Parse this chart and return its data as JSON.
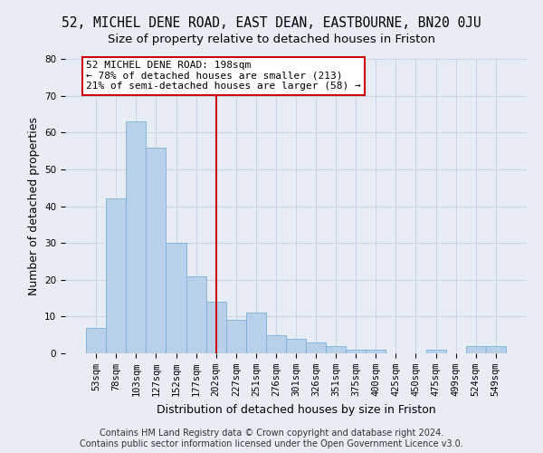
{
  "title_line1": "52, MICHEL DENE ROAD, EAST DEAN, EASTBOURNE, BN20 0JU",
  "title_line2": "Size of property relative to detached houses in Friston",
  "xlabel": "Distribution of detached houses by size in Friston",
  "ylabel": "Number of detached properties",
  "bar_labels": [
    "53sqm",
    "78sqm",
    "103sqm",
    "127sqm",
    "152sqm",
    "177sqm",
    "202sqm",
    "227sqm",
    "251sqm",
    "276sqm",
    "301sqm",
    "326sqm",
    "351sqm",
    "375sqm",
    "400sqm",
    "425sqm",
    "450sqm",
    "475sqm",
    "499sqm",
    "524sqm",
    "549sqm"
  ],
  "bar_values": [
    7,
    42,
    63,
    56,
    30,
    21,
    14,
    9,
    11,
    5,
    4,
    3,
    2,
    1,
    1,
    0,
    0,
    1,
    0,
    2,
    2
  ],
  "bar_color": "#b8d0ea",
  "bar_edge_color": "#7aafd4",
  "vline_x_index": 6,
  "vline_color": "#cc0000",
  "annotation_line1": "52 MICHEL DENE ROAD: 198sqm",
  "annotation_line2": "← 78% of detached houses are smaller (213)",
  "annotation_line3": "21% of semi-detached houses are larger (58) →",
  "annotation_box_color": "#ffffff",
  "annotation_box_edge": "#cc0000",
  "ylim": [
    0,
    80
  ],
  "yticks": [
    0,
    10,
    20,
    30,
    40,
    50,
    60,
    70,
    80
  ],
  "grid_color": "#c8d4e8",
  "background_color": "#e8edf5",
  "footer": "Contains HM Land Registry data © Crown copyright and database right 2024.\nContains public sector information licensed under the Open Government Licence v3.0.",
  "title_fontsize": 10.5,
  "subtitle_fontsize": 9.5,
  "axis_label_fontsize": 9,
  "tick_fontsize": 7.5,
  "annotation_fontsize": 8,
  "footer_fontsize": 7
}
